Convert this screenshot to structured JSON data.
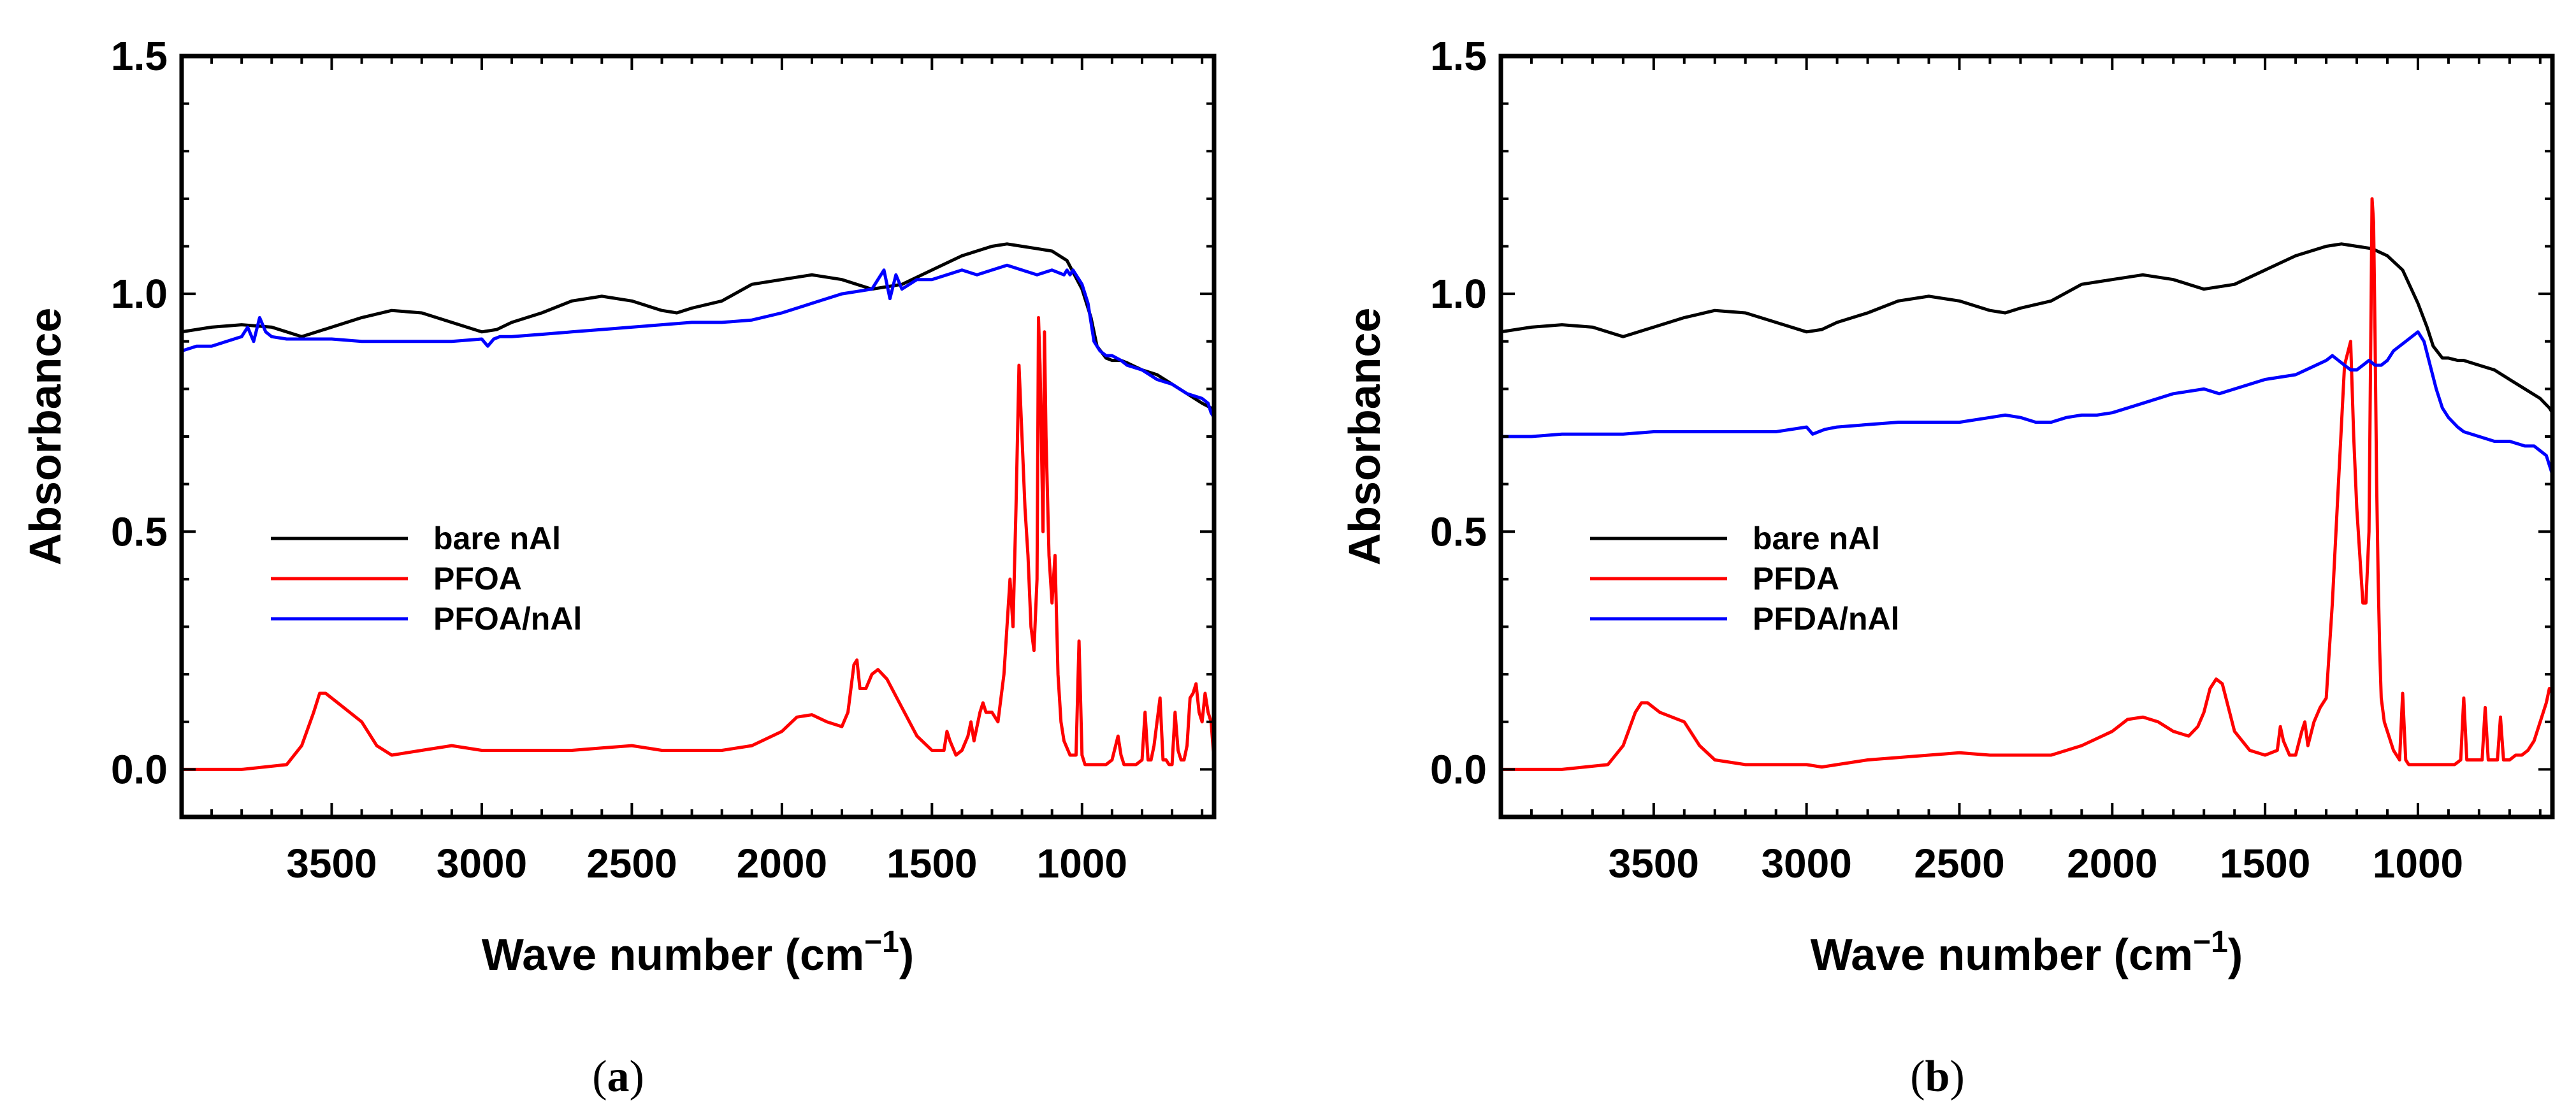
{
  "chart_data": [
    {
      "type": "line",
      "panel_label": "a",
      "title": "",
      "xlabel": "Wave number (cm",
      "xlabel_sup": "−1",
      "xlabel_close": ")",
      "ylabel": "Absorbance",
      "xlim": [
        4000,
        560
      ],
      "ylim": [
        -0.1,
        1.5
      ],
      "x_ticks": [
        3500,
        3000,
        2500,
        2000,
        1500,
        1000
      ],
      "x_tick_labels": [
        "3500",
        "3000",
        "2500",
        "2000",
        "1500",
        "1000"
      ],
      "y_ticks": [
        0.0,
        0.5,
        1.0,
        1.5
      ],
      "y_tick_labels": [
        "0.0",
        "0.5",
        "1.0",
        "1.5"
      ],
      "grid": false,
      "legend_position": "lower-left",
      "series": [
        {
          "name": "bare nAl",
          "color": "#000000",
          "x": [
            4000,
            3900,
            3800,
            3700,
            3600,
            3500,
            3400,
            3300,
            3200,
            3100,
            3000,
            2950,
            2900,
            2800,
            2700,
            2600,
            2500,
            2400,
            2350,
            2300,
            2200,
            2100,
            2000,
            1900,
            1800,
            1700,
            1600,
            1500,
            1400,
            1300,
            1250,
            1200,
            1150,
            1100,
            1050,
            1000,
            970,
            950,
            920,
            900,
            870,
            850,
            800,
            750,
            700,
            650,
            600,
            570,
            560
          ],
          "values": [
            0.92,
            0.93,
            0.935,
            0.93,
            0.91,
            0.93,
            0.95,
            0.965,
            0.96,
            0.94,
            0.92,
            0.925,
            0.94,
            0.96,
            0.985,
            0.995,
            0.985,
            0.965,
            0.96,
            0.97,
            0.985,
            1.02,
            1.03,
            1.04,
            1.03,
            1.01,
            1.02,
            1.05,
            1.08,
            1.1,
            1.105,
            1.1,
            1.095,
            1.09,
            1.07,
            1.01,
            0.95,
            0.89,
            0.865,
            0.86,
            0.86,
            0.855,
            0.84,
            0.83,
            0.81,
            0.79,
            0.77,
            0.76,
            0.75
          ]
        },
        {
          "name": "PFOA",
          "color": "#ff0000",
          "x": [
            4000,
            3800,
            3650,
            3600,
            3560,
            3540,
            3520,
            3480,
            3440,
            3400,
            3350,
            3300,
            3200,
            3100,
            3000,
            2900,
            2800,
            2700,
            2600,
            2500,
            2400,
            2300,
            2200,
            2100,
            2000,
            1950,
            1900,
            1850,
            1800,
            1780,
            1760,
            1750,
            1740,
            1720,
            1700,
            1680,
            1650,
            1600,
            1550,
            1500,
            1460,
            1450,
            1440,
            1420,
            1400,
            1380,
            1370,
            1360,
            1340,
            1330,
            1320,
            1300,
            1280,
            1260,
            1240,
            1230,
            1220,
            1210,
            1200,
            1190,
            1180,
            1170,
            1160,
            1150,
            1145,
            1140,
            1130,
            1125,
            1120,
            1110,
            1100,
            1090,
            1080,
            1070,
            1060,
            1040,
            1020,
            1010,
            1000,
            990,
            980,
            960,
            940,
            920,
            900,
            880,
            870,
            860,
            840,
            820,
            800,
            790,
            780,
            770,
            760,
            740,
            730,
            720,
            710,
            700,
            690,
            680,
            670,
            660,
            650,
            640,
            630,
            620,
            610,
            600,
            590,
            580,
            570,
            560
          ],
          "values": [
            0.0,
            0.0,
            0.01,
            0.05,
            0.12,
            0.16,
            0.16,
            0.14,
            0.12,
            0.1,
            0.05,
            0.03,
            0.04,
            0.05,
            0.04,
            0.04,
            0.04,
            0.04,
            0.045,
            0.05,
            0.04,
            0.04,
            0.04,
            0.05,
            0.08,
            0.11,
            0.115,
            0.1,
            0.09,
            0.12,
            0.22,
            0.23,
            0.17,
            0.17,
            0.2,
            0.21,
            0.19,
            0.13,
            0.07,
            0.04,
            0.04,
            0.08,
            0.06,
            0.03,
            0.04,
            0.07,
            0.1,
            0.06,
            0.12,
            0.14,
            0.12,
            0.12,
            0.1,
            0.2,
            0.4,
            0.3,
            0.55,
            0.85,
            0.7,
            0.55,
            0.45,
            0.3,
            0.25,
            0.4,
            0.95,
            0.85,
            0.5,
            0.92,
            0.7,
            0.45,
            0.35,
            0.45,
            0.2,
            0.1,
            0.06,
            0.03,
            0.03,
            0.27,
            0.03,
            0.01,
            0.01,
            0.01,
            0.01,
            0.01,
            0.02,
            0.07,
            0.03,
            0.01,
            0.01,
            0.01,
            0.02,
            0.12,
            0.02,
            0.02,
            0.05,
            0.15,
            0.02,
            0.02,
            0.01,
            0.01,
            0.12,
            0.04,
            0.02,
            0.02,
            0.05,
            0.15,
            0.16,
            0.18,
            0.12,
            0.1,
            0.16,
            0.12,
            0.1,
            0.02
          ]
        },
        {
          "name": "PFOA/nAl",
          "color": "#0000ff",
          "x": [
            4000,
            3950,
            3900,
            3850,
            3800,
            3780,
            3760,
            3740,
            3720,
            3700,
            3650,
            3600,
            3500,
            3400,
            3300,
            3200,
            3100,
            3000,
            2980,
            2960,
            2940,
            2900,
            2800,
            2700,
            2600,
            2500,
            2400,
            2300,
            2200,
            2100,
            2000,
            1900,
            1800,
            1700,
            1660,
            1640,
            1620,
            1600,
            1550,
            1500,
            1450,
            1400,
            1350,
            1300,
            1250,
            1200,
            1150,
            1100,
            1060,
            1050,
            1040,
            1030,
            1020,
            1010,
            1000,
            990,
            980,
            960,
            940,
            920,
            900,
            870,
            850,
            800,
            750,
            700,
            650,
            600,
            580,
            570,
            560
          ],
          "values": [
            0.88,
            0.89,
            0.89,
            0.9,
            0.91,
            0.93,
            0.9,
            0.95,
            0.92,
            0.91,
            0.905,
            0.905,
            0.905,
            0.9,
            0.9,
            0.9,
            0.9,
            0.905,
            0.89,
            0.905,
            0.91,
            0.91,
            0.915,
            0.92,
            0.925,
            0.93,
            0.935,
            0.94,
            0.94,
            0.945,
            0.96,
            0.98,
            1.0,
            1.01,
            1.05,
            0.99,
            1.04,
            1.01,
            1.03,
            1.03,
            1.04,
            1.05,
            1.04,
            1.05,
            1.06,
            1.05,
            1.04,
            1.05,
            1.04,
            1.05,
            1.04,
            1.05,
            1.04,
            1.03,
            1.02,
            1.0,
            0.98,
            0.9,
            0.88,
            0.87,
            0.87,
            0.86,
            0.85,
            0.84,
            0.82,
            0.81,
            0.79,
            0.78,
            0.77,
            0.75,
            0.74
          ]
        }
      ]
    },
    {
      "type": "line",
      "panel_label": "b",
      "title": "",
      "xlabel": "Wave number (cm",
      "xlabel_sup": "−1",
      "xlabel_close": ")",
      "ylabel": "Absorbance",
      "xlim": [
        4000,
        560
      ],
      "ylim": [
        -0.1,
        1.5
      ],
      "x_ticks": [
        3500,
        3000,
        2500,
        2000,
        1500,
        1000
      ],
      "x_tick_labels": [
        "3500",
        "3000",
        "2500",
        "2000",
        "1500",
        "1000"
      ],
      "y_ticks": [
        0.0,
        0.5,
        1.0,
        1.5
      ],
      "y_tick_labels": [
        "0.0",
        "0.5",
        "1.0",
        "1.5"
      ],
      "grid": false,
      "legend_position": "lower-left",
      "series": [
        {
          "name": "bare nAl",
          "color": "#000000",
          "x": [
            4000,
            3900,
            3800,
            3700,
            3600,
            3500,
            3400,
            3300,
            3200,
            3100,
            3000,
            2950,
            2900,
            2800,
            2700,
            2600,
            2500,
            2400,
            2350,
            2300,
            2200,
            2100,
            2000,
            1900,
            1800,
            1700,
            1600,
            1500,
            1400,
            1300,
            1250,
            1200,
            1150,
            1100,
            1050,
            1000,
            970,
            950,
            920,
            900,
            870,
            850,
            800,
            750,
            700,
            650,
            600,
            570,
            560
          ],
          "values": [
            0.92,
            0.93,
            0.935,
            0.93,
            0.91,
            0.93,
            0.95,
            0.965,
            0.96,
            0.94,
            0.92,
            0.925,
            0.94,
            0.96,
            0.985,
            0.995,
            0.985,
            0.965,
            0.96,
            0.97,
            0.985,
            1.02,
            1.03,
            1.04,
            1.03,
            1.01,
            1.02,
            1.05,
            1.08,
            1.1,
            1.105,
            1.1,
            1.095,
            1.08,
            1.05,
            0.98,
            0.93,
            0.89,
            0.865,
            0.865,
            0.86,
            0.86,
            0.85,
            0.84,
            0.82,
            0.8,
            0.78,
            0.76,
            0.75
          ]
        },
        {
          "name": "PFDA",
          "color": "#ff0000",
          "x": [
            4000,
            3800,
            3650,
            3600,
            3560,
            3540,
            3520,
            3480,
            3440,
            3400,
            3350,
            3300,
            3200,
            3100,
            3000,
            2950,
            2900,
            2800,
            2700,
            2600,
            2500,
            2400,
            2300,
            2200,
            2100,
            2000,
            1950,
            1900,
            1850,
            1800,
            1750,
            1720,
            1700,
            1680,
            1660,
            1640,
            1620,
            1600,
            1550,
            1500,
            1460,
            1450,
            1440,
            1420,
            1400,
            1380,
            1370,
            1360,
            1340,
            1320,
            1300,
            1280,
            1260,
            1240,
            1220,
            1210,
            1200,
            1190,
            1180,
            1170,
            1160,
            1150,
            1145,
            1140,
            1135,
            1130,
            1125,
            1120,
            1110,
            1100,
            1090,
            1080,
            1070,
            1060,
            1050,
            1040,
            1030,
            1020,
            1010,
            1000,
            980,
            960,
            940,
            920,
            900,
            880,
            860,
            850,
            840,
            820,
            800,
            790,
            780,
            770,
            760,
            750,
            740,
            730,
            720,
            710,
            700,
            680,
            660,
            640,
            620,
            600,
            580,
            570,
            560
          ],
          "values": [
            0.0,
            0.0,
            0.01,
            0.05,
            0.12,
            0.14,
            0.14,
            0.12,
            0.11,
            0.1,
            0.05,
            0.02,
            0.01,
            0.01,
            0.01,
            0.005,
            0.01,
            0.02,
            0.025,
            0.03,
            0.035,
            0.03,
            0.03,
            0.03,
            0.05,
            0.08,
            0.105,
            0.11,
            0.1,
            0.08,
            0.07,
            0.09,
            0.12,
            0.17,
            0.19,
            0.18,
            0.13,
            0.08,
            0.04,
            0.03,
            0.04,
            0.09,
            0.06,
            0.03,
            0.03,
            0.08,
            0.1,
            0.05,
            0.1,
            0.13,
            0.15,
            0.35,
            0.6,
            0.85,
            0.9,
            0.7,
            0.55,
            0.45,
            0.35,
            0.35,
            0.5,
            1.2,
            1.15,
            0.9,
            0.6,
            0.4,
            0.25,
            0.15,
            0.1,
            0.08,
            0.06,
            0.04,
            0.03,
            0.02,
            0.16,
            0.02,
            0.01,
            0.01,
            0.01,
            0.01,
            0.01,
            0.01,
            0.01,
            0.01,
            0.01,
            0.01,
            0.02,
            0.15,
            0.02,
            0.02,
            0.02,
            0.02,
            0.13,
            0.02,
            0.02,
            0.02,
            0.02,
            0.11,
            0.02,
            0.02,
            0.02,
            0.03,
            0.03,
            0.04,
            0.06,
            0.1,
            0.14,
            0.17,
            0.16
          ]
        },
        {
          "name": "PFDA/nAl",
          "color": "#0000ff",
          "x": [
            4000,
            3900,
            3800,
            3700,
            3600,
            3500,
            3400,
            3300,
            3200,
            3100,
            3000,
            2980,
            2960,
            2940,
            2900,
            2800,
            2700,
            2600,
            2500,
            2400,
            2350,
            2300,
            2250,
            2200,
            2150,
            2100,
            2050,
            2000,
            1900,
            1800,
            1700,
            1650,
            1600,
            1500,
            1400,
            1350,
            1300,
            1280,
            1260,
            1240,
            1220,
            1200,
            1180,
            1160,
            1140,
            1120,
            1100,
            1080,
            1060,
            1040,
            1020,
            1000,
            980,
            960,
            940,
            920,
            900,
            870,
            850,
            800,
            750,
            700,
            650,
            620,
            600,
            580,
            570,
            560
          ],
          "values": [
            0.7,
            0.7,
            0.705,
            0.705,
            0.705,
            0.71,
            0.71,
            0.71,
            0.71,
            0.71,
            0.72,
            0.705,
            0.71,
            0.715,
            0.72,
            0.725,
            0.73,
            0.73,
            0.73,
            0.74,
            0.745,
            0.74,
            0.73,
            0.73,
            0.74,
            0.745,
            0.745,
            0.75,
            0.77,
            0.79,
            0.8,
            0.79,
            0.8,
            0.82,
            0.83,
            0.845,
            0.86,
            0.87,
            0.86,
            0.85,
            0.84,
            0.84,
            0.85,
            0.86,
            0.85,
            0.85,
            0.86,
            0.88,
            0.89,
            0.9,
            0.91,
            0.92,
            0.9,
            0.85,
            0.8,
            0.76,
            0.74,
            0.72,
            0.71,
            0.7,
            0.69,
            0.69,
            0.68,
            0.68,
            0.67,
            0.66,
            0.64,
            0.62
          ]
        }
      ]
    }
  ]
}
